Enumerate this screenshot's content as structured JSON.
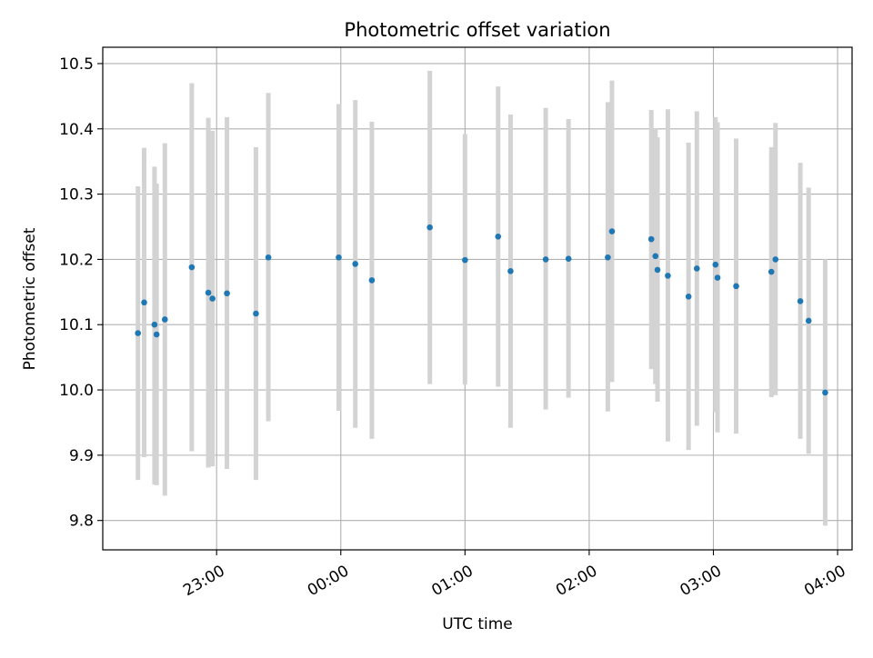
{
  "chart_data": {
    "type": "scatter",
    "title": "Photometric offset variation",
    "xlabel": "UTC time",
    "ylabel": "Photometric offset",
    "xlim": [
      "2023-01-01T22:05:00",
      "2023-01-02T04:07:00"
    ],
    "ylim": [
      9.755,
      10.525
    ],
    "x_ticks": [
      {
        "time": "2023-01-01T23:00:00",
        "label": "23:00"
      },
      {
        "time": "2023-01-02T00:00:00",
        "label": "00:00"
      },
      {
        "time": "2023-01-02T01:00:00",
        "label": "01:00"
      },
      {
        "time": "2023-01-02T02:00:00",
        "label": "02:00"
      },
      {
        "time": "2023-01-02T03:00:00",
        "label": "03:00"
      },
      {
        "time": "2023-01-02T04:00:00",
        "label": "04:00"
      }
    ],
    "y_ticks": [
      "9.8",
      "9.9",
      "10.0",
      "10.1",
      "10.2",
      "10.3",
      "10.4",
      "10.5"
    ],
    "grid": true,
    "point_color": "#1f77b4",
    "errorbar_color": "#d3d3d3",
    "points": [
      {
        "t": "2023-01-01T22:22:00",
        "y": 10.087,
        "lo": 9.862,
        "hi": 10.312
      },
      {
        "t": "2023-01-01T22:25:00",
        "y": 10.134,
        "lo": 9.897,
        "hi": 10.371
      },
      {
        "t": "2023-01-01T22:30:00",
        "y": 10.1,
        "lo": 9.855,
        "hi": 10.342
      },
      {
        "t": "2023-01-01T22:31:00",
        "y": 10.085,
        "lo": 9.854,
        "hi": 10.316
      },
      {
        "t": "2023-01-01T22:35:00",
        "y": 10.108,
        "lo": 9.838,
        "hi": 10.378
      },
      {
        "t": "2023-01-01T22:48:00",
        "y": 10.188,
        "lo": 9.906,
        "hi": 10.47
      },
      {
        "t": "2023-01-01T22:56:00",
        "y": 10.149,
        "lo": 9.881,
        "hi": 10.417
      },
      {
        "t": "2023-01-01T22:58:00",
        "y": 10.14,
        "lo": 9.883,
        "hi": 10.397
      },
      {
        "t": "2023-01-01T23:05:00",
        "y": 10.148,
        "lo": 9.879,
        "hi": 10.418
      },
      {
        "t": "2023-01-01T23:19:00",
        "y": 10.117,
        "lo": 9.862,
        "hi": 10.372
      },
      {
        "t": "2023-01-01T23:25:00",
        "y": 10.203,
        "lo": 9.952,
        "hi": 10.455
      },
      {
        "t": "2023-01-01T23:59:00",
        "y": 10.203,
        "lo": 9.968,
        "hi": 10.438
      },
      {
        "t": "2023-01-02T00:07:00",
        "y": 10.193,
        "lo": 9.942,
        "hi": 10.444
      },
      {
        "t": "2023-01-02T00:15:00",
        "y": 10.168,
        "lo": 9.925,
        "hi": 10.411
      },
      {
        "t": "2023-01-02T00:43:00",
        "y": 10.249,
        "lo": 10.009,
        "hi": 10.489
      },
      {
        "t": "2023-01-02T01:00:00",
        "y": 10.199,
        "lo": 10.008,
        "hi": 10.392
      },
      {
        "t": "2023-01-02T01:16:00",
        "y": 10.235,
        "lo": 10.005,
        "hi": 10.465
      },
      {
        "t": "2023-01-02T01:22:00",
        "y": 10.182,
        "lo": 9.942,
        "hi": 10.422
      },
      {
        "t": "2023-01-02T01:39:00",
        "y": 10.2,
        "lo": 9.97,
        "hi": 10.432
      },
      {
        "t": "2023-01-02T01:50:00",
        "y": 10.201,
        "lo": 9.988,
        "hi": 10.415
      },
      {
        "t": "2023-01-02T02:09:00",
        "y": 10.203,
        "lo": 9.967,
        "hi": 10.441
      },
      {
        "t": "2023-01-02T02:11:00",
        "y": 10.243,
        "lo": 10.012,
        "hi": 10.474
      },
      {
        "t": "2023-01-02T02:30:00",
        "y": 10.231,
        "lo": 10.032,
        "hi": 10.429
      },
      {
        "t": "2023-01-02T02:32:00",
        "y": 10.205,
        "lo": 10.009,
        "hi": 10.401
      },
      {
        "t": "2023-01-02T02:33:00",
        "y": 10.184,
        "lo": 9.982,
        "hi": 10.387
      },
      {
        "t": "2023-01-02T02:38:00",
        "y": 10.175,
        "lo": 9.921,
        "hi": 10.43
      },
      {
        "t": "2023-01-02T02:48:00",
        "y": 10.143,
        "lo": 9.908,
        "hi": 10.379
      },
      {
        "t": "2023-01-02T02:52:00",
        "y": 10.186,
        "lo": 9.945,
        "hi": 10.427
      },
      {
        "t": "2023-01-02T03:01:00",
        "y": 10.192,
        "lo": 9.966,
        "hi": 10.418
      },
      {
        "t": "2023-01-02T03:02:00",
        "y": 10.172,
        "lo": 9.935,
        "hi": 10.41
      },
      {
        "t": "2023-01-02T03:11:00",
        "y": 10.159,
        "lo": 9.933,
        "hi": 10.385
      },
      {
        "t": "2023-01-02T03:28:00",
        "y": 10.181,
        "lo": 9.989,
        "hi": 10.372
      },
      {
        "t": "2023-01-02T03:30:00",
        "y": 10.2,
        "lo": 9.992,
        "hi": 10.409
      },
      {
        "t": "2023-01-02T03:42:00",
        "y": 10.136,
        "lo": 9.925,
        "hi": 10.348
      },
      {
        "t": "2023-01-02T03:46:00",
        "y": 10.106,
        "lo": 9.902,
        "hi": 10.31
      },
      {
        "t": "2023-01-02T03:54:00",
        "y": 9.996,
        "lo": 9.792,
        "hi": 10.2
      }
    ]
  }
}
